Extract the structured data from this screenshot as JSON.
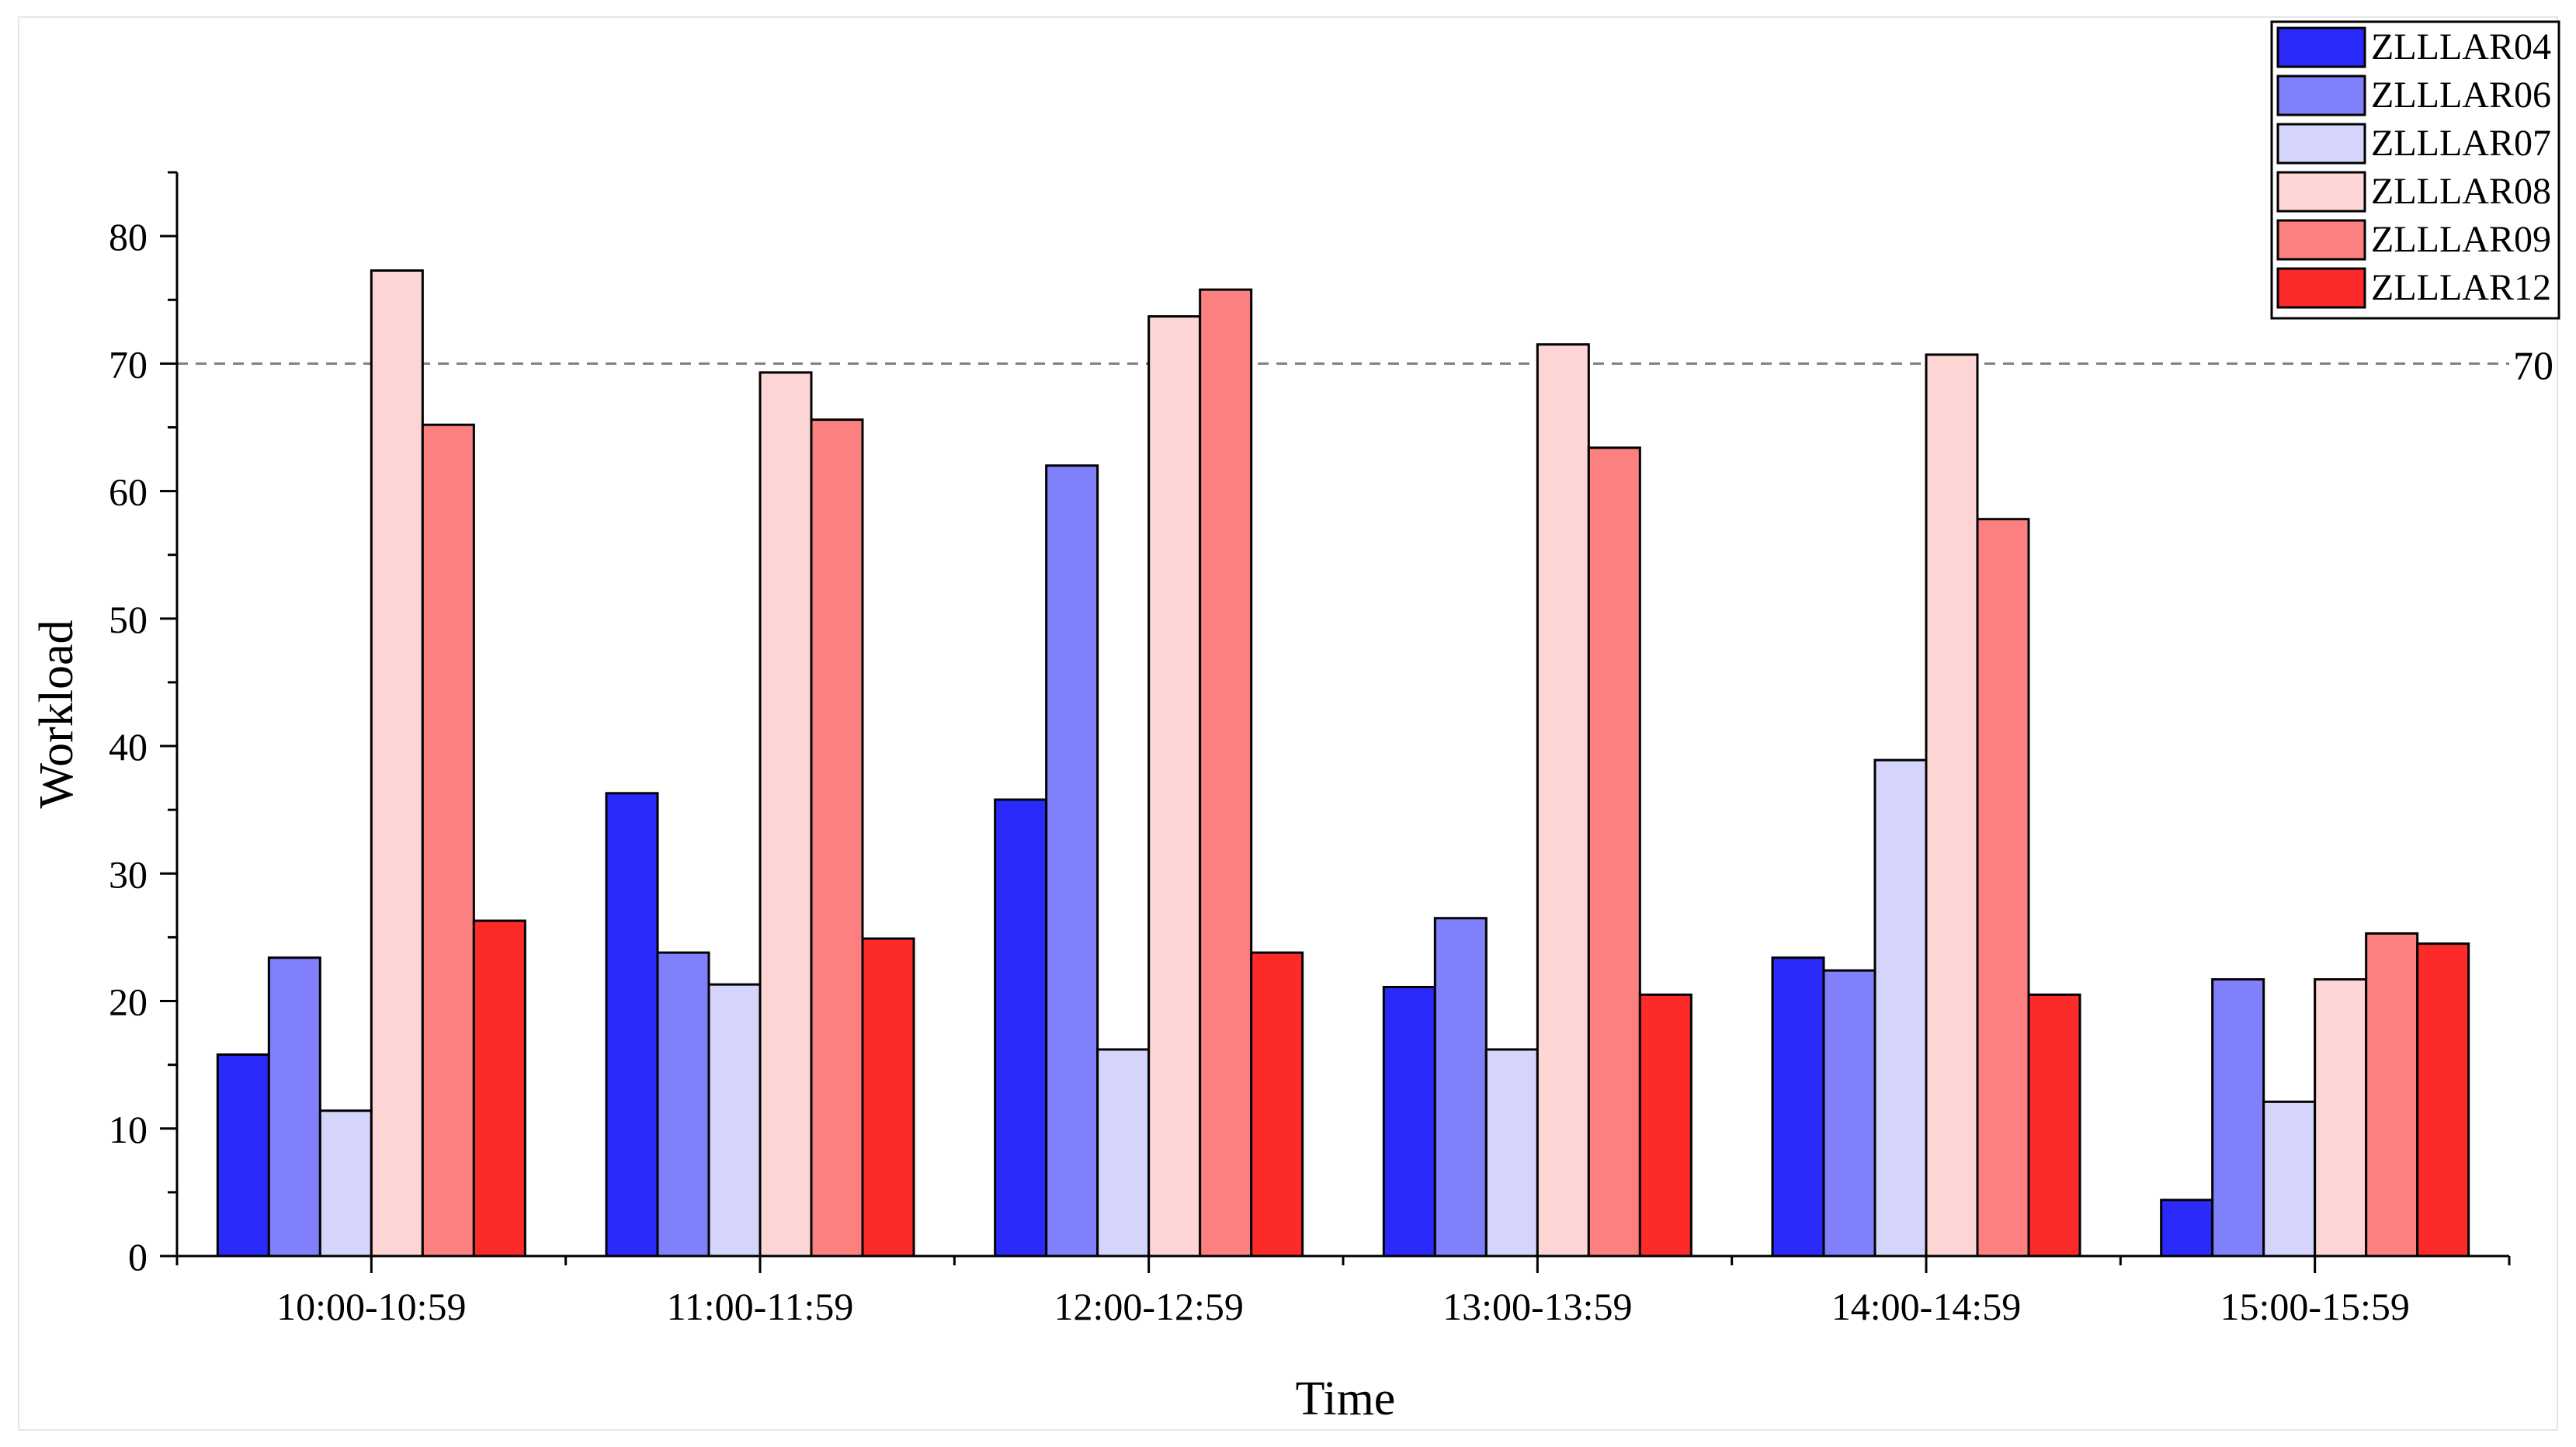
{
  "chart_data": {
    "type": "bar",
    "title": "",
    "xlabel": "Time",
    "ylabel": "Workload",
    "ylim": [
      0,
      85
    ],
    "yticks": [
      0,
      10,
      20,
      30,
      40,
      50,
      60,
      70,
      80
    ],
    "grid": false,
    "legend_position": "top-right",
    "categories": [
      "10:00-10:59",
      "11:00-11:59",
      "12:00-12:59",
      "13:00-13:59",
      "14:00-14:59",
      "15:00-15:59"
    ],
    "series": [
      {
        "name": "ZLLLAR04",
        "color": "#2a2afa",
        "values": [
          15.8,
          36.3,
          35.8,
          21.1,
          23.4,
          4.4
        ]
      },
      {
        "name": "ZLLLAR06",
        "color": "#8080fb",
        "values": [
          23.4,
          23.8,
          62.0,
          26.5,
          22.4,
          21.7
        ]
      },
      {
        "name": "ZLLLAR07",
        "color": "#d5d5fb",
        "values": [
          11.4,
          21.3,
          16.2,
          16.2,
          38.9,
          12.1
        ]
      },
      {
        "name": "ZLLLAR08",
        "color": "#fdd5d5",
        "values": [
          77.3,
          69.3,
          73.7,
          71.5,
          70.7,
          21.7
        ]
      },
      {
        "name": "ZLLLAR09",
        "color": "#fd8080",
        "values": [
          65.2,
          65.6,
          75.8,
          63.4,
          57.8,
          25.3
        ]
      },
      {
        "name": "ZLLLAR12",
        "color": "#fd2a2a",
        "values": [
          26.3,
          24.9,
          23.8,
          20.5,
          20.5,
          24.5
        ]
      }
    ],
    "reference_line": {
      "value": 70,
      "label": "70"
    }
  }
}
